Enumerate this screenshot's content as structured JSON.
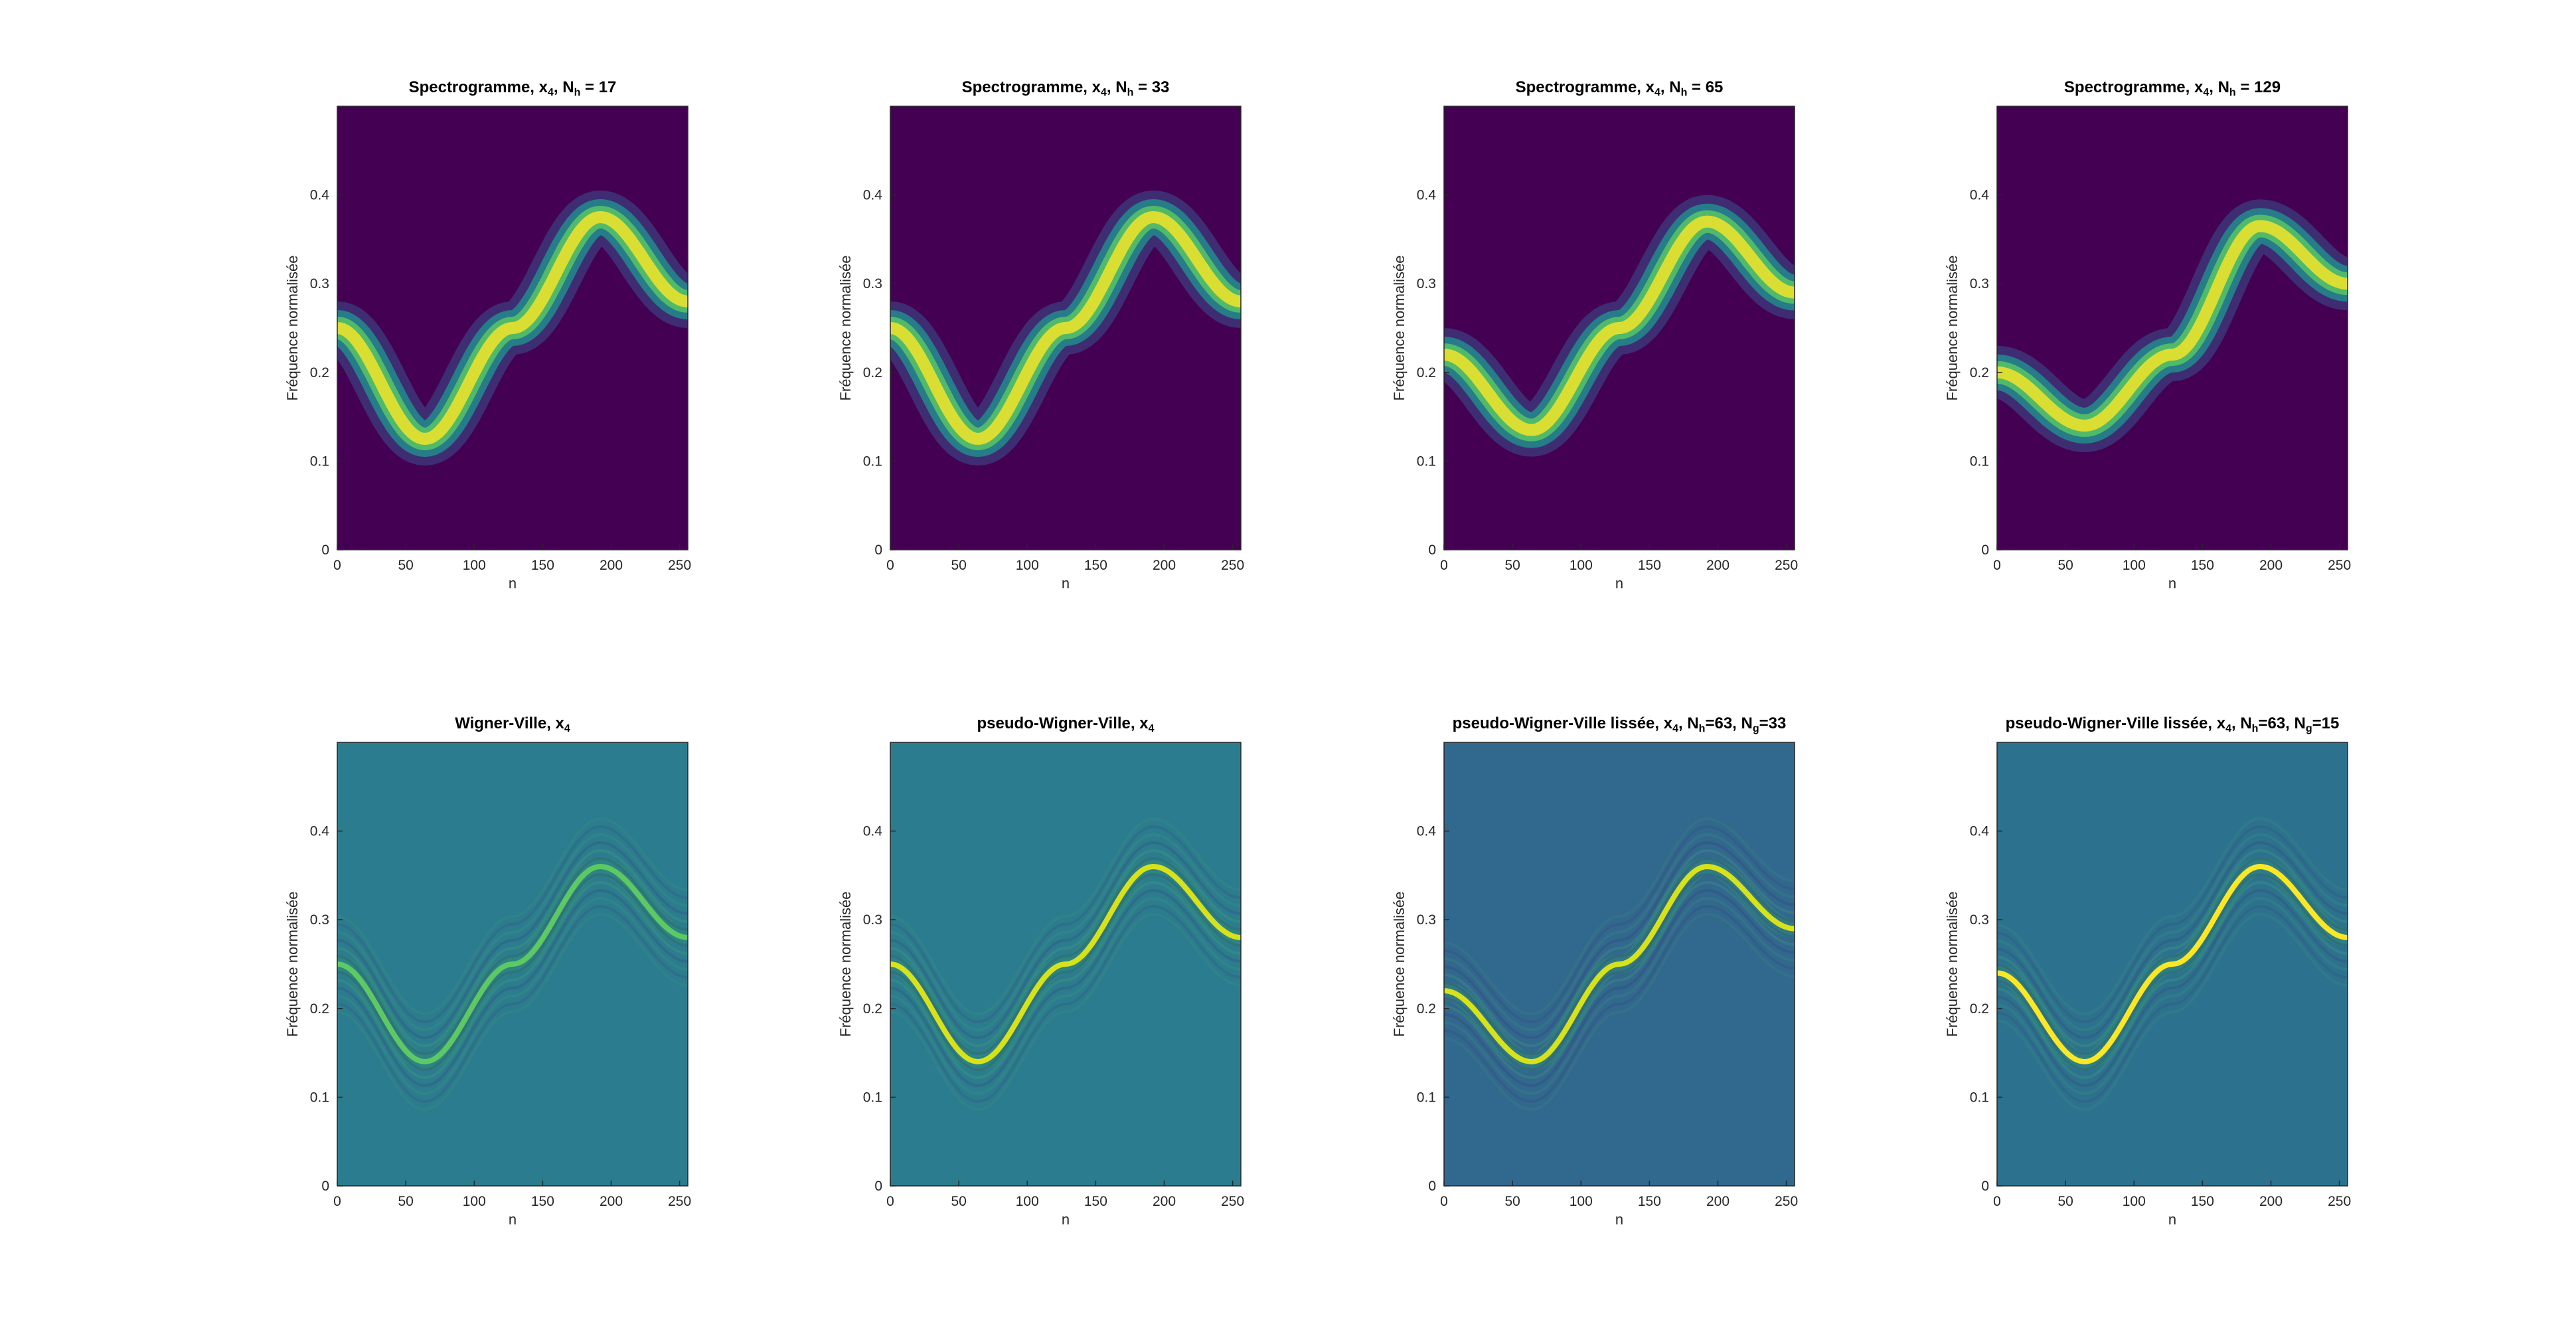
{
  "figure": {
    "colormap": [
      "#440154",
      "#3b528b",
      "#21908d",
      "#5dc963",
      "#fde725"
    ]
  },
  "chart_data": [
    {
      "type": "heatmap",
      "kind": "spectrogram",
      "title_main": "Spectrogramme, x",
      "title_sub": "4",
      "title_after": ", N",
      "title_sub2": "h",
      "title_tail": " = 17",
      "xlabel": "n",
      "ylabel": "Fréquence normalisée",
      "xlim": [
        0,
        256
      ],
      "ylim": [
        0,
        0.5
      ],
      "xticks": [
        0,
        50,
        100,
        150,
        200,
        250
      ],
      "yticks": [
        0,
        0.1,
        0.2,
        0.3,
        0.4
      ],
      "ridge": {
        "x": [
          0,
          64,
          128,
          192,
          256
        ],
        "y": [
          0.25,
          0.125,
          0.25,
          0.375,
          0.28
        ]
      },
      "peak_color": "#fde725"
    },
    {
      "type": "heatmap",
      "kind": "spectrogram",
      "title_main": "Spectrogramme, x",
      "title_sub": "4",
      "title_after": ", N",
      "title_sub2": "h",
      "title_tail": " = 33",
      "xlabel": "n",
      "ylabel": "Fréquence normalisée",
      "xlim": [
        0,
        256
      ],
      "ylim": [
        0,
        0.5
      ],
      "xticks": [
        0,
        50,
        100,
        150,
        200,
        250
      ],
      "yticks": [
        0,
        0.1,
        0.2,
        0.3,
        0.4
      ],
      "ridge": {
        "x": [
          0,
          64,
          128,
          192,
          256
        ],
        "y": [
          0.25,
          0.125,
          0.25,
          0.375,
          0.28
        ]
      },
      "peak_color": "#fde725"
    },
    {
      "type": "heatmap",
      "kind": "spectrogram",
      "title_main": "Spectrogramme, x",
      "title_sub": "4",
      "title_after": ", N",
      "title_sub2": "h",
      "title_tail": " = 65",
      "xlabel": "n",
      "ylabel": "Fréquence normalisée",
      "xlim": [
        0,
        256
      ],
      "ylim": [
        0,
        0.5
      ],
      "xticks": [
        0,
        50,
        100,
        150,
        200,
        250
      ],
      "yticks": [
        0,
        0.1,
        0.2,
        0.3,
        0.4
      ],
      "ridge": {
        "x": [
          0,
          64,
          128,
          192,
          256
        ],
        "y": [
          0.22,
          0.135,
          0.25,
          0.37,
          0.29
        ]
      },
      "peak_color": "#fde725"
    },
    {
      "type": "heatmap",
      "kind": "spectrogram",
      "title_main": "Spectrogramme, x",
      "title_sub": "4",
      "title_after": ", N",
      "title_sub2": "h",
      "title_tail": " = 129",
      "xlabel": "n",
      "ylabel": "Fréquence normalisée",
      "xlim": [
        0,
        256
      ],
      "ylim": [
        0,
        0.5
      ],
      "xticks": [
        0,
        50,
        100,
        150,
        200,
        250
      ],
      "yticks": [
        0,
        0.1,
        0.2,
        0.3,
        0.4
      ],
      "ridge": {
        "x": [
          0,
          64,
          128,
          192,
          256
        ],
        "y": [
          0.2,
          0.14,
          0.22,
          0.365,
          0.3
        ]
      },
      "peak_color": "#fde725"
    },
    {
      "type": "heatmap",
      "kind": "wigner",
      "title_main": "Wigner-Ville, x",
      "title_sub": "4",
      "title_after": "",
      "title_sub2": "",
      "title_tail": "",
      "xlabel": "n",
      "ylabel": "Fréquence normalisée",
      "xlim": [
        0,
        256
      ],
      "ylim": [
        0,
        0.5
      ],
      "xticks": [
        0,
        50,
        100,
        150,
        200,
        250
      ],
      "yticks": [
        0,
        0.1,
        0.2,
        0.3,
        0.4
      ],
      "ridge": {
        "x": [
          0,
          64,
          128,
          192,
          256
        ],
        "y": [
          0.25,
          0.14,
          0.25,
          0.36,
          0.28
        ]
      },
      "background": "#2b7c8e",
      "peak_color": "#5dc963"
    },
    {
      "type": "heatmap",
      "kind": "wigner",
      "title_main": "pseudo-Wigner-Ville, x",
      "title_sub": "4",
      "title_after": "",
      "title_sub2": "",
      "title_tail": "",
      "xlabel": "n",
      "ylabel": "Fréquence normalisée",
      "xlim": [
        0,
        256
      ],
      "ylim": [
        0,
        0.5
      ],
      "xticks": [
        0,
        50,
        100,
        150,
        200,
        250
      ],
      "yticks": [
        0,
        0.1,
        0.2,
        0.3,
        0.4
      ],
      "ridge": {
        "x": [
          0,
          64,
          128,
          192,
          256
        ],
        "y": [
          0.25,
          0.14,
          0.25,
          0.36,
          0.28
        ]
      },
      "background": "#2b7c8e",
      "peak_color": "#d8e219"
    },
    {
      "type": "heatmap",
      "kind": "wigner",
      "title_main": "pseudo-Wigner-Ville lissée, x",
      "title_sub": "4",
      "title_after": ", N",
      "title_sub2": "h",
      "title_tail": "=63, N",
      "title_sub3": "g",
      "title_tail2": "=33",
      "xlabel": "n",
      "ylabel": "Fréquence normalisée",
      "xlim": [
        0,
        256
      ],
      "ylim": [
        0,
        0.5
      ],
      "xticks": [
        0,
        50,
        100,
        150,
        200,
        250
      ],
      "yticks": [
        0,
        0.1,
        0.2,
        0.3,
        0.4
      ],
      "ridge": {
        "x": [
          0,
          64,
          128,
          192,
          256
        ],
        "y": [
          0.22,
          0.14,
          0.25,
          0.36,
          0.29
        ]
      },
      "background": "#31688e",
      "peak_color": "#d8e219"
    },
    {
      "type": "heatmap",
      "kind": "wigner",
      "title_main": "pseudo-Wigner-Ville lissée, x",
      "title_sub": "4",
      "title_after": ", N",
      "title_sub2": "h",
      "title_tail": "=63, N",
      "title_sub3": "g",
      "title_tail2": "=15",
      "xlabel": "n",
      "ylabel": "Fréquence normalisée",
      "xlim": [
        0,
        256
      ],
      "ylim": [
        0,
        0.5
      ],
      "xticks": [
        0,
        50,
        100,
        150,
        200,
        250
      ],
      "yticks": [
        0,
        0.1,
        0.2,
        0.3,
        0.4
      ],
      "ridge": {
        "x": [
          0,
          64,
          128,
          192,
          256
        ],
        "y": [
          0.24,
          0.14,
          0.25,
          0.36,
          0.28
        ]
      },
      "background": "#2c728e",
      "peak_color": "#fde725"
    }
  ]
}
